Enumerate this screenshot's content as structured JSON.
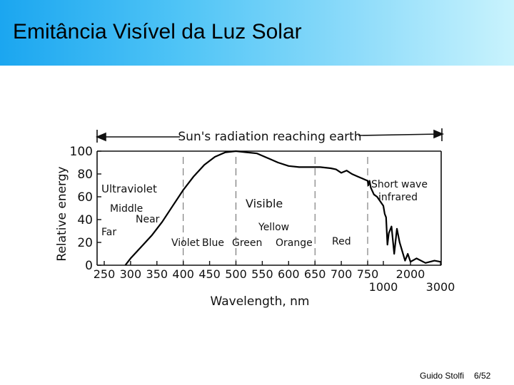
{
  "slide": {
    "title": "Emitância Visível da Luz Solar",
    "author": "Guido Stolfi",
    "page": "6/52"
  },
  "chart_data": {
    "type": "line",
    "title": "Sun's radiation reaching earth",
    "xlabel": "Wavelength, nm",
    "ylabel": "Relative energy",
    "ylim": [
      0,
      100
    ],
    "xlim": [
      250,
      3000
    ],
    "y_ticks": [
      0,
      20,
      40,
      60,
      80,
      100
    ],
    "x_tick_labels": [
      "250",
      "300",
      "350",
      "400",
      "450",
      "500",
      "550",
      "600",
      "650",
      "700",
      "750",
      "1000",
      "2000",
      "3000"
    ],
    "region_labels": {
      "ultraviolet": "Ultraviolet",
      "middle": "Middle",
      "near": "Near",
      "far": "Far",
      "visible": "Visible",
      "violet": "Violet",
      "blue": "Blue",
      "green": "Green",
      "yellow": "Yellow",
      "orange": "Orange",
      "red": "Red",
      "short_wave": "Short wave",
      "infrared": "infrared"
    },
    "series": [
      {
        "x": [
          290,
          300,
          320,
          340,
          360,
          380,
          400,
          420,
          440,
          460,
          480,
          500,
          520,
          540,
          560,
          580,
          600,
          620,
          640,
          660,
          680,
          690,
          700,
          710,
          720,
          730,
          740,
          750,
          760,
          780,
          800,
          850,
          900,
          950,
          1000,
          1050,
          1100,
          1150,
          1200,
          1300,
          1400,
          1500,
          1600,
          1800,
          1900,
          2000,
          2200,
          2500,
          2800,
          3000
        ],
        "y": [
          0,
          6,
          16,
          26,
          38,
          52,
          66,
          78,
          88,
          95,
          99,
          100,
          99,
          98,
          94,
          90,
          87,
          86,
          86,
          86,
          85,
          84,
          81,
          83,
          80,
          78,
          76,
          74,
          70,
          74,
          68,
          62,
          60,
          56,
          52,
          45,
          42,
          18,
          28,
          34,
          10,
          32,
          20,
          4,
          10,
          3,
          6,
          2,
          4,
          3
        ]
      }
    ]
  }
}
